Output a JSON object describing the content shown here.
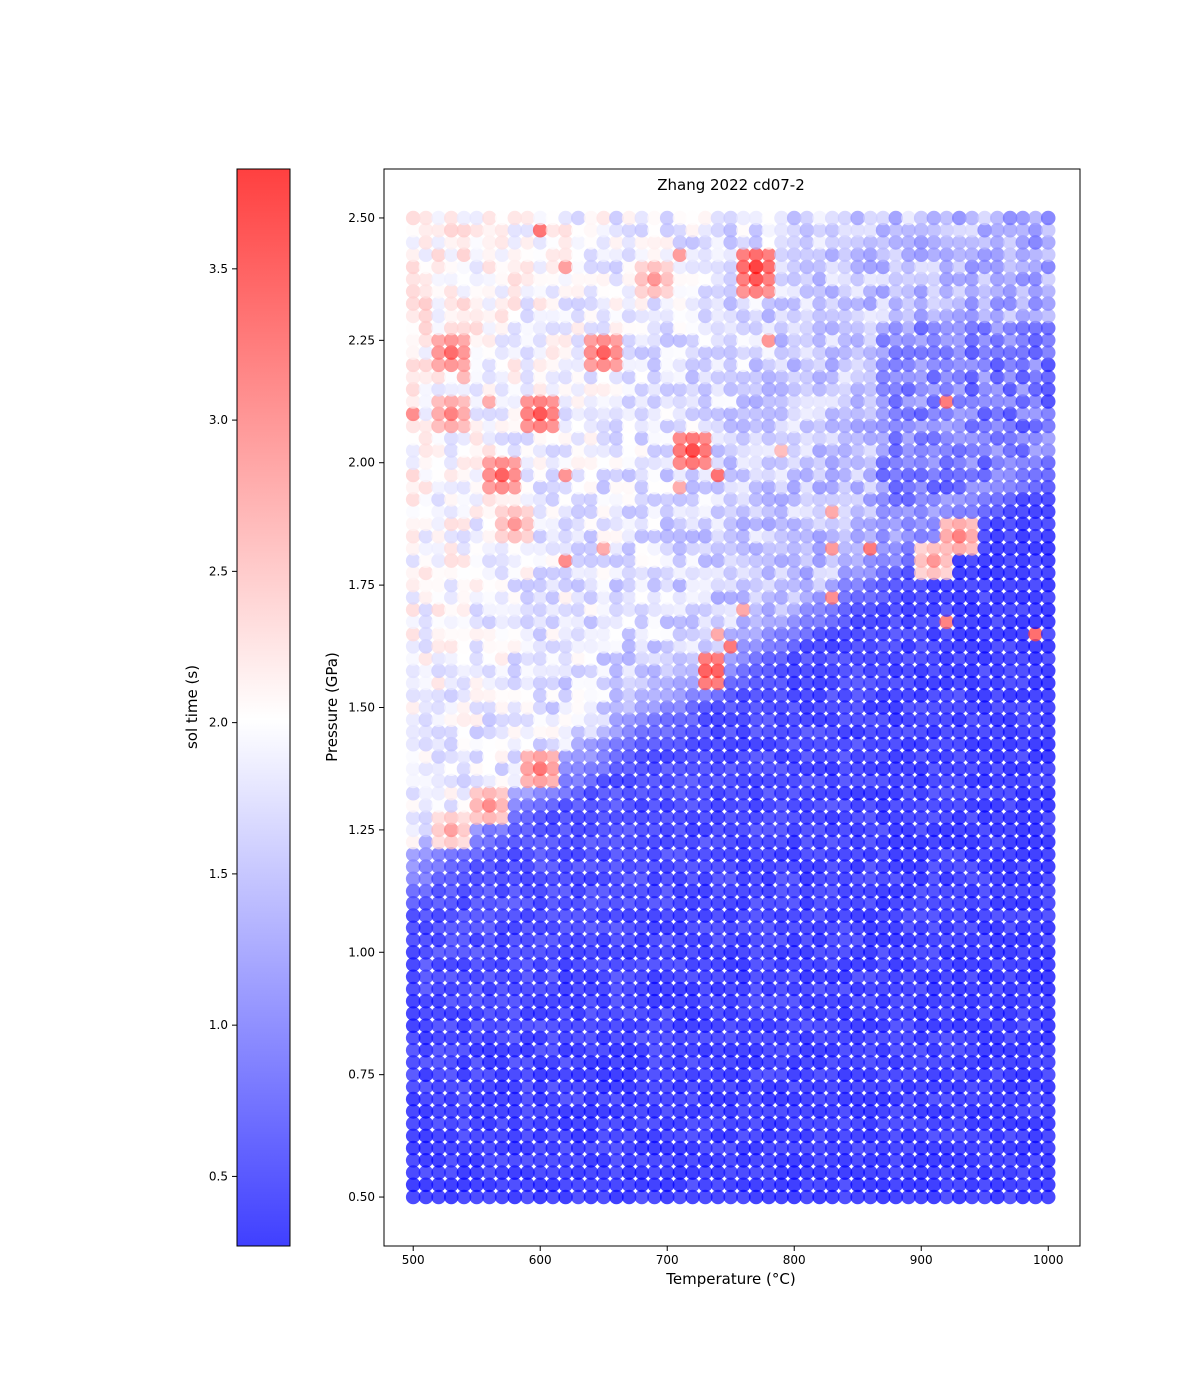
{
  "chart_data": {
    "type": "scatter",
    "title": "Zhang 2022 cd07-2",
    "xlabel": "Temperature (°C)",
    "ylabel": "Pressure (GPa)",
    "xlim": [
      477,
      1025
    ],
    "ylim": [
      0.4,
      2.6
    ],
    "xticks": [
      "500",
      "600",
      "700",
      "800",
      "900",
      "1000"
    ],
    "yticks": [
      "0.50",
      "0.75",
      "1.00",
      "1.25",
      "1.50",
      "1.75",
      "2.00",
      "2.25",
      "2.50"
    ],
    "grid": false,
    "x_range": [
      500,
      1000
    ],
    "y_range": [
      0.5,
      2.5
    ],
    "x_step": 10,
    "y_step": 0.025,
    "colormap": "bwr",
    "colors": {
      "low": "#0000ff",
      "mid": "#ffffff",
      "high": "#ff0000",
      "alpha": 0.75
    },
    "colorbar": {
      "label": "sol time (s)",
      "range": [
        0.27,
        3.83
      ],
      "ticks": [
        "0.5",
        "1.0",
        "1.5",
        "2.0",
        "2.5",
        "3.0",
        "3.5"
      ]
    },
    "value_field": {
      "description_of_trend": "sol time is lowest (~0.3-0.6 s) at high temperature / low pressure and rises toward ~2-2.5 s at low temperature / high pressure, with a sharp boundary running from about (600, 1.38) to (940, 1.95) and scattered red outliers up to ~3.8 s",
      "hotspots": [
        {
          "x": 770,
          "y": 2.4,
          "value": 3.8
        },
        {
          "x": 770,
          "y": 2.375,
          "value": 3.6
        },
        {
          "x": 720,
          "y": 2.025,
          "value": 3.7
        },
        {
          "x": 600,
          "y": 2.1,
          "value": 3.6
        },
        {
          "x": 570,
          "y": 1.975,
          "value": 3.5
        },
        {
          "x": 530,
          "y": 2.225,
          "value": 3.4
        },
        {
          "x": 650,
          "y": 2.225,
          "value": 3.5
        },
        {
          "x": 735,
          "y": 1.575,
          "value": 3.7
        },
        {
          "x": 600,
          "y": 1.375,
          "value": 3.3
        },
        {
          "x": 560,
          "y": 1.3,
          "value": 3.1
        },
        {
          "x": 530,
          "y": 1.25,
          "value": 2.9
        },
        {
          "x": 930,
          "y": 1.85,
          "value": 3.2
        },
        {
          "x": 910,
          "y": 1.8,
          "value": 3.0
        },
        {
          "x": 580,
          "y": 1.875,
          "value": 3.0
        },
        {
          "x": 530,
          "y": 2.1,
          "value": 3.2
        },
        {
          "x": 690,
          "y": 2.375,
          "value": 3.0
        }
      ]
    }
  }
}
